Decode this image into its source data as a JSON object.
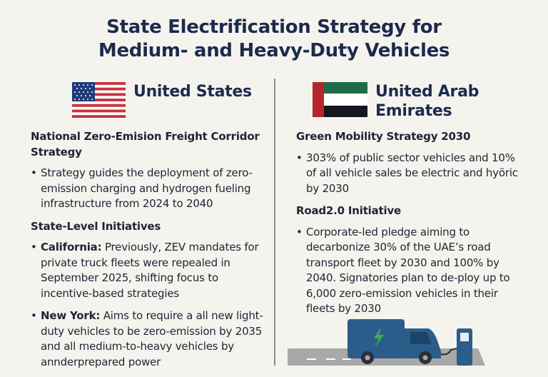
{
  "title": {
    "line1": "State Electrification Strategy for",
    "line2": "Medium- and Heavy-Duty Vehicles"
  },
  "us": {
    "country": "United States",
    "flag_icon": "us-flag",
    "sections": [
      {
        "heading": "National Zero-Emision Freight Corridor Strategy",
        "bullets": [
          {
            "lead": "",
            "text": "Strategy guides the deployment of zero-emission charging and hydrogen fueling infrastructure from 2024 to 2040"
          }
        ]
      },
      {
        "heading": "State-Level Initiatives",
        "bullets": [
          {
            "lead": "California:",
            "text": " Previously, ZEV mandates for private truck fleets were repealed in September 2025, shifting focus to incentive-based strategies"
          },
          {
            "lead": "New York:",
            "text": " Aims to require a all new light-duty vehicles to be zero-emission by 2035 and all medium-to-heavy vehicles by annderprepared power"
          }
        ]
      }
    ]
  },
  "uae": {
    "country_line1": "United Arab",
    "country_line2": "Emirates",
    "flag_icon": "uae-flag",
    "sections": [
      {
        "heading": "Green Mobility Strategy 2030",
        "bullets": [
          {
            "text": "303% of public sector vehicles and 10% of all vehicle sales be electric and hyöric by 2030"
          }
        ]
      },
      {
        "heading": "Road2.0 Initiative",
        "bullets": [
          {
            "text": "Corporate-led pledge aiming to decarbonize 30% of the UAE’s road transport fleet by 2030 and 100% by 2040. Signatories plan to de-ploy up to 6,000 zero-emission vehicles in their fleets by 2030"
          }
        ]
      }
    ]
  },
  "illustration": {
    "icons": [
      "electric-truck",
      "lightning-bolt",
      "charging-station"
    ]
  },
  "colors": {
    "title": "#1c2a4d",
    "background": "#f5f3ee",
    "truck": "#2a5d8a",
    "bolt": "#3fae4a"
  }
}
